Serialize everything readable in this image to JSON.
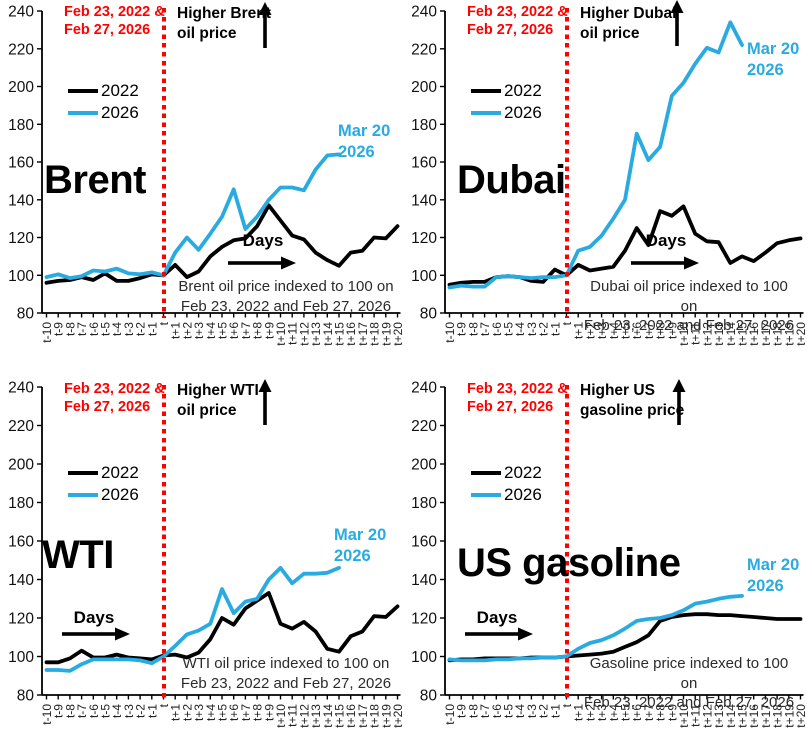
{
  "colors": {
    "series_2022": "#000000",
    "series_2026": "#29ABE2",
    "event_line_red": "#FF0000",
    "caption_text": "#2B2B2B"
  },
  "chart_data": [
    {
      "id": "brent",
      "type": "line",
      "title": "Brent",
      "event_label": [
        "Feb 23, 2022 &",
        "Feb 27, 2026"
      ],
      "higher_label": [
        "Higher Brent",
        "oil price"
      ],
      "days_label": "Days",
      "annotation": [
        "Mar 20",
        "2026"
      ],
      "caption": [
        "Brent oil price indexed to 100 on",
        "Feb 23, 2022 and Feb 27, 2026"
      ],
      "ylim": [
        80,
        240
      ],
      "y_ticks": [
        80,
        100,
        120,
        140,
        160,
        180,
        200,
        220,
        240
      ],
      "categories": [
        "t-10",
        "t-9",
        "t-8",
        "t-7",
        "t-6",
        "t-5",
        "t-4",
        "t-3",
        "t-2",
        "t-1",
        "t",
        "t+1",
        "t+2",
        "t+3",
        "t+4",
        "t+5",
        "t+6",
        "t+7",
        "t+8",
        "t+9",
        "t+10",
        "t+11",
        "t+12",
        "t+13",
        "t+14",
        "t+15",
        "t+16",
        "t+17",
        "t+18",
        "t+19",
        "t+20"
      ],
      "series": [
        {
          "name": "2022",
          "color": "#000000",
          "values": [
            96,
            97,
            97.5,
            99,
            97.5,
            101,
            97,
            97,
            98.5,
            100.5,
            100,
            105.5,
            99,
            102,
            110,
            115,
            118.5,
            119.5,
            126,
            137,
            129,
            121,
            119,
            112,
            108,
            105,
            112,
            113,
            120,
            119.5,
            126
          ]
        },
        {
          "name": "2026",
          "color": "#29ABE2",
          "values": [
            99,
            100.5,
            98.5,
            99.5,
            102.5,
            102,
            103.5,
            101,
            100.5,
            101.5,
            100,
            112,
            120,
            113.5,
            122,
            131,
            145.5,
            124.5,
            131,
            140,
            146.5,
            146.5,
            145,
            156,
            163.5,
            164
          ]
        }
      ]
    },
    {
      "id": "dubai",
      "type": "line",
      "title": "Dubai",
      "event_label": [
        "Feb 23, 2022 &",
        "Feb 27, 2026"
      ],
      "higher_label": [
        "Higher Dubai",
        "oil price"
      ],
      "days_label": "Days",
      "annotation": [
        "Mar 20",
        "2026"
      ],
      "caption": [
        "Dubai oil price indexed to 100 on",
        "Feb 23, 2022 and Feb 27, 2026"
      ],
      "ylim": [
        80,
        240
      ],
      "y_ticks": [
        80,
        100,
        120,
        140,
        160,
        180,
        200,
        220,
        240
      ],
      "categories": [
        "t-10",
        "t-9",
        "t-8",
        "t-7",
        "t-6",
        "t-5",
        "t-4",
        "t-3",
        "t-2",
        "t-1",
        "t",
        "t+1",
        "t+2",
        "t+3",
        "t+4",
        "t+5",
        "t+6",
        "t+7",
        "t+8",
        "t+9",
        "t+10",
        "t+11",
        "t+12",
        "t+13",
        "t+14",
        "t+15",
        "t+16",
        "t+17",
        "t+18",
        "t+19",
        "t+20"
      ],
      "series": [
        {
          "name": "2022",
          "color": "#000000",
          "values": [
            95,
            96,
            96.5,
            96.5,
            99,
            99.5,
            99,
            97,
            96.5,
            103,
            100,
            105.5,
            102.5,
            103.5,
            104.5,
            113,
            125,
            116,
            134,
            131.5,
            136.5,
            122,
            118,
            117.5,
            106.5,
            110,
            107.5,
            112,
            117,
            118.5,
            119.5
          ]
        },
        {
          "name": "2026",
          "color": "#29ABE2",
          "values": [
            93.5,
            94.5,
            94,
            94,
            99,
            99.5,
            99,
            98.5,
            99,
            99,
            100,
            113,
            115,
            121,
            130,
            140,
            175,
            161,
            168,
            195,
            202,
            212,
            220.5,
            218,
            234,
            222
          ]
        }
      ]
    },
    {
      "id": "wti",
      "type": "line",
      "title": "WTI",
      "event_label": [
        "Feb 23, 2022 &",
        "Feb 27, 2026"
      ],
      "higher_label": [
        "Higher WTI",
        "oil price"
      ],
      "days_label": "Days",
      "annotation": [
        "Mar 20",
        "2026"
      ],
      "caption": [
        "WTI oil price indexed to 100 on",
        "Feb 23, 2022 and Feb 27, 2026"
      ],
      "ylim": [
        80,
        240
      ],
      "y_ticks": [
        80,
        100,
        120,
        140,
        160,
        180,
        200,
        220,
        240
      ],
      "categories": [
        "t-10",
        "t-9",
        "t-8",
        "t-7",
        "t-6",
        "t-5",
        "t-4",
        "t-3",
        "t-2",
        "t-1",
        "t",
        "t+1",
        "t+2",
        "t+3",
        "t+4",
        "t+5",
        "t+6",
        "t+7",
        "t+8",
        "t+9",
        "t+10",
        "t+11",
        "t+12",
        "t+13",
        "t+14",
        "t+15",
        "t+16",
        "t+17",
        "t+18",
        "t+19",
        "t+20"
      ],
      "series": [
        {
          "name": "2022",
          "color": "#000000",
          "values": [
            97,
            97,
            99,
            103,
            99.5,
            99.5,
            101,
            99.5,
            99,
            98.5,
            100.5,
            101,
            99.5,
            102,
            109,
            120,
            116.5,
            125,
            129,
            133,
            117,
            114.5,
            118,
            113,
            104,
            102.5,
            110.5,
            113,
            121,
            120.5,
            126
          ]
        },
        {
          "name": "2026",
          "color": "#29ABE2",
          "values": [
            93,
            93,
            92.5,
            96,
            98.5,
            98.5,
            98.5,
            98.5,
            98,
            96.5,
            100,
            105.5,
            111.5,
            113.5,
            117,
            135,
            122.5,
            128.5,
            130,
            140,
            146,
            138,
            143,
            143,
            143.5,
            146
          ]
        }
      ]
    },
    {
      "id": "us-gasoline",
      "type": "line",
      "title": "US gasoline",
      "event_label": [
        "Feb 23, 2022 &",
        "Feb 27, 2026"
      ],
      "higher_label": [
        "Higher US",
        "gasoline price"
      ],
      "days_label": "Days",
      "annotation": [
        "Mar 20",
        "2026"
      ],
      "caption": [
        "Gasoline price indexed to 100 on",
        "Feb 23, 2022 and Feb 27, 2026"
      ],
      "ylim": [
        80,
        240
      ],
      "y_ticks": [
        80,
        100,
        120,
        140,
        160,
        180,
        200,
        220,
        240
      ],
      "categories": [
        "t-10",
        "t-9",
        "t-8",
        "t-7",
        "t-6",
        "t-5",
        "t-4",
        "t-3",
        "t-2",
        "t-1",
        "t",
        "t+1",
        "t+2",
        "t+3",
        "t+4",
        "t+5",
        "t+6",
        "t+7",
        "t+8",
        "t+9",
        "t+10",
        "t+11",
        "t+12",
        "t+13",
        "t+14",
        "t+15",
        "t+16",
        "t+17",
        "t+18",
        "t+19",
        "t+20"
      ],
      "series": [
        {
          "name": "2022",
          "color": "#000000",
          "values": [
            98,
            98.5,
            98.5,
            99,
            99,
            99,
            99,
            99.5,
            99.5,
            99.5,
            100,
            100.5,
            101,
            101.5,
            102.5,
            105,
            107.5,
            111,
            118.5,
            120.5,
            121.5,
            122,
            122,
            121.5,
            121.5,
            121,
            120.5,
            120,
            119.5,
            119.5,
            119.5
          ]
        },
        {
          "name": "2026",
          "color": "#29ABE2",
          "values": [
            98.5,
            98,
            98,
            98,
            98.5,
            98.5,
            99,
            99,
            99.5,
            99.5,
            100,
            104,
            107,
            108.5,
            111,
            114.5,
            118.5,
            119.5,
            120,
            121.5,
            124,
            127.5,
            128.5,
            130,
            131,
            131.5
          ]
        }
      ]
    }
  ]
}
